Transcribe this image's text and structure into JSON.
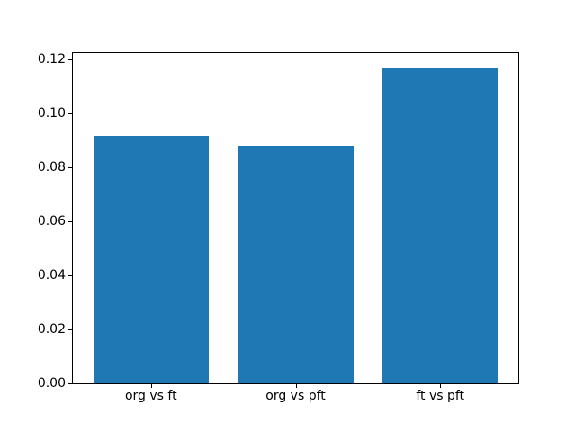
{
  "figure": {
    "background": "#ffffff",
    "spine_color": "#000000",
    "text_color": "#000000"
  },
  "chart_data": {
    "type": "bar",
    "title": "",
    "xlabel": "",
    "ylabel": "",
    "categories": [
      "org vs ft",
      "org vs pft",
      "ft vs pft"
    ],
    "values": [
      0.0915,
      0.0878,
      0.1166
    ],
    "bar_color": "#1f77b4",
    "bar_width_fraction": 0.8,
    "ylim": [
      0,
      0.1222
    ],
    "ytick_labels": [
      "0.00",
      "0.02",
      "0.04",
      "0.06",
      "0.08",
      "0.10",
      "0.12"
    ],
    "grid": false,
    "legend": null
  }
}
